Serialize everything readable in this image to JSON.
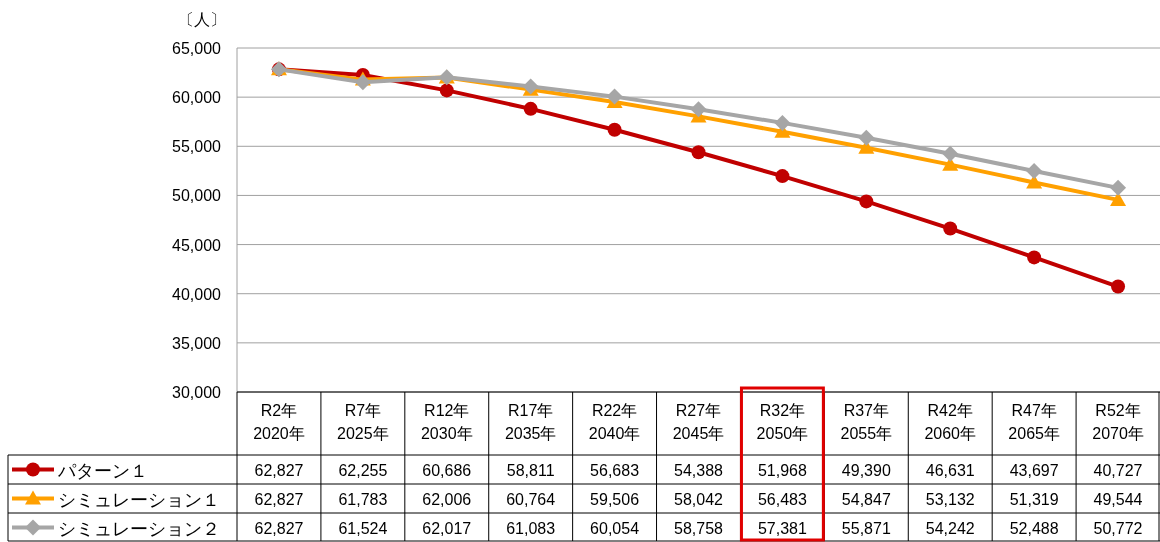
{
  "chart_data": {
    "type": "line",
    "ylabel": "〔人〕",
    "categories": [
      "R2年\n2020年",
      "R7年\n2025年",
      "R12年\n2030年",
      "R17年\n2035年",
      "R22年\n2040年",
      "R27年\n2045年",
      "R32年\n2050年",
      "R37年\n2055年",
      "R42年\n2060年",
      "R47年\n2065年",
      "R52年\n2070年"
    ],
    "series": [
      {
        "name": "パターン１",
        "color": "#c00000",
        "marker": "circle",
        "values": [
          62827,
          62255,
          60686,
          58811,
          56683,
          54388,
          51968,
          49390,
          46631,
          43697,
          40727
        ],
        "value_labels": [
          "62,827",
          "62,255",
          "60,686",
          "58,811",
          "56,683",
          "54,388",
          "51,968",
          "49,390",
          "46,631",
          "43,697",
          "40,727"
        ]
      },
      {
        "name": "シミュレーション１",
        "color": "#ffa000",
        "marker": "triangle",
        "values": [
          62827,
          61783,
          62006,
          60764,
          59506,
          58042,
          56483,
          54847,
          53132,
          51319,
          49544
        ],
        "value_labels": [
          "62,827",
          "61,783",
          "62,006",
          "60,764",
          "59,506",
          "58,042",
          "56,483",
          "54,847",
          "53,132",
          "51,319",
          "49,544"
        ]
      },
      {
        "name": "シミュレーション２",
        "color": "#a6a6a6",
        "marker": "diamond",
        "values": [
          62827,
          61524,
          62017,
          61083,
          60054,
          58758,
          57381,
          55871,
          54242,
          52488,
          50772
        ],
        "value_labels": [
          "62,827",
          "61,524",
          "62,017",
          "61,083",
          "60,054",
          "58,758",
          "57,381",
          "55,871",
          "54,242",
          "52,488",
          "50,772"
        ]
      }
    ],
    "ylim": [
      30000,
      65000
    ],
    "yticks": [
      {
        "value": 30000,
        "label": "30,000"
      },
      {
        "value": 35000,
        "label": "35,000"
      },
      {
        "value": 40000,
        "label": "40,000"
      },
      {
        "value": 45000,
        "label": "45,000"
      },
      {
        "value": 50000,
        "label": "50,000"
      },
      {
        "value": 55000,
        "label": "55,000"
      },
      {
        "value": 60000,
        "label": "60,000"
      },
      {
        "value": 65000,
        "label": "65,000"
      }
    ],
    "grid": "y",
    "legend": "bottom",
    "line_style": "solid"
  }
}
